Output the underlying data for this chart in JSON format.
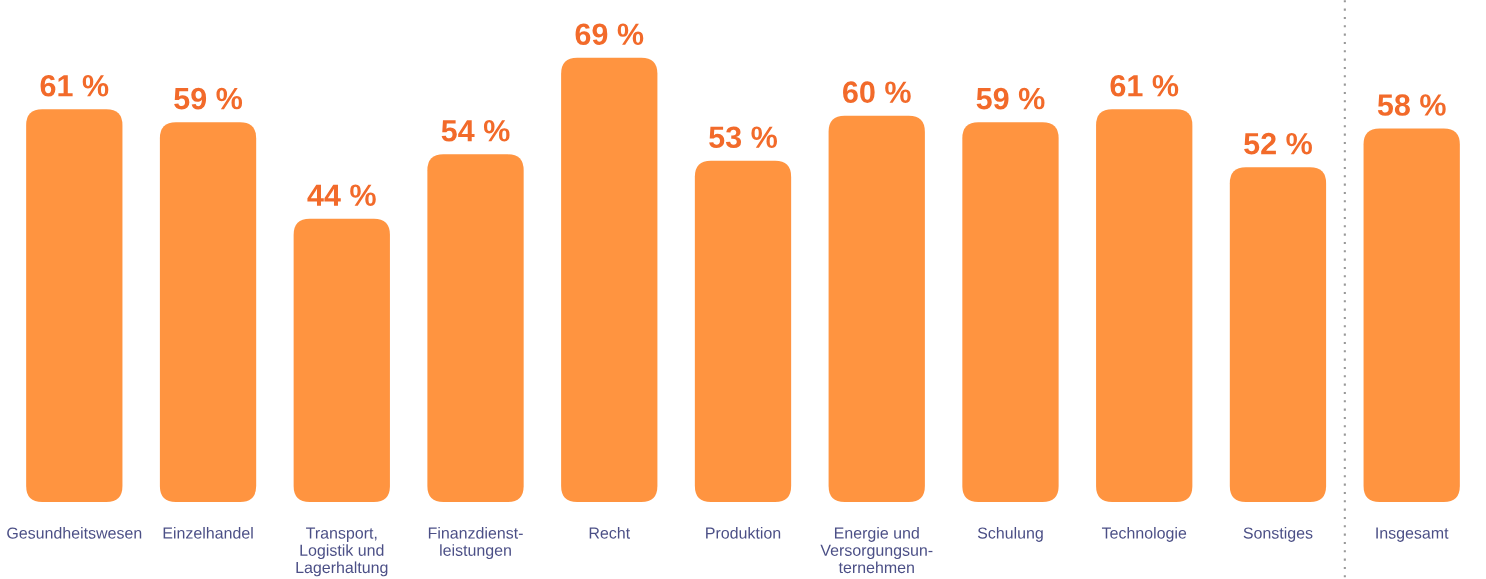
{
  "chart_data": {
    "type": "bar",
    "categories": [
      "Gesundheitswesen",
      "Einzelhandel",
      "Transport,\nLogistik und\nLagerhaltung",
      "Finanzdienst-\nleistungen",
      "Recht",
      "Produktion",
      "Energie und\nVersorgungsun-\nternehmen",
      "Schulung",
      "Technologie",
      "Sonstiges",
      "Insgesamt"
    ],
    "values": [
      61,
      59,
      44,
      54,
      69,
      53,
      60,
      59,
      61,
      52,
      58
    ],
    "value_labels": [
      "61 %",
      "59 %",
      "44 %",
      "54 %",
      "69 %",
      "53 %",
      "60 %",
      "59 %",
      "61 %",
      "52 %",
      "58 %"
    ],
    "color": "#ff9440",
    "grid": false,
    "legend": false
  }
}
